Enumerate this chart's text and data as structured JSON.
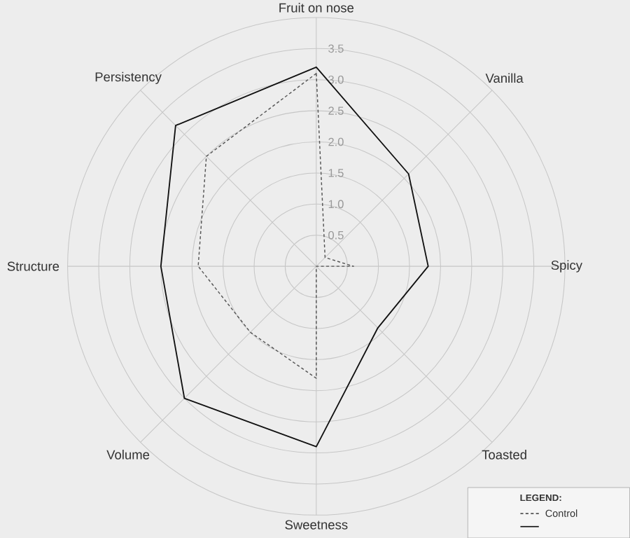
{
  "chart_data": {
    "type": "radar",
    "categories": [
      "Fruit on nose",
      "Vanilla",
      "Spicy",
      "Toasted",
      "Sweetness",
      "Volume",
      "Structure",
      "Persistency"
    ],
    "ylim": [
      0,
      4
    ],
    "yticks": [
      0.5,
      {
        "value": 1,
        "label": "1.0"
      },
      1.5,
      {
        "value": 2,
        "label": "2.0"
      },
      2.5,
      {
        "value": 3,
        "label": "3.0"
      },
      3.5
    ],
    "grid": true,
    "legend": "bottom right",
    "legend_title": "LEGEND:",
    "marker": "none",
    "series": [
      {
        "name": "Control",
        "color": "#555555",
        "line_style": "dashed",
        "values": [
          3.1,
          0.2,
          0.6,
          0,
          1.8,
          1.5,
          1.9,
          2.5
        ]
      },
      {
        "color": "#111111",
        "line_style": "solid",
        "values": [
          3.2,
          2.1,
          1.8,
          1.4,
          2.9,
          3.0,
          2.5,
          3.2
        ]
      }
    ]
  }
}
